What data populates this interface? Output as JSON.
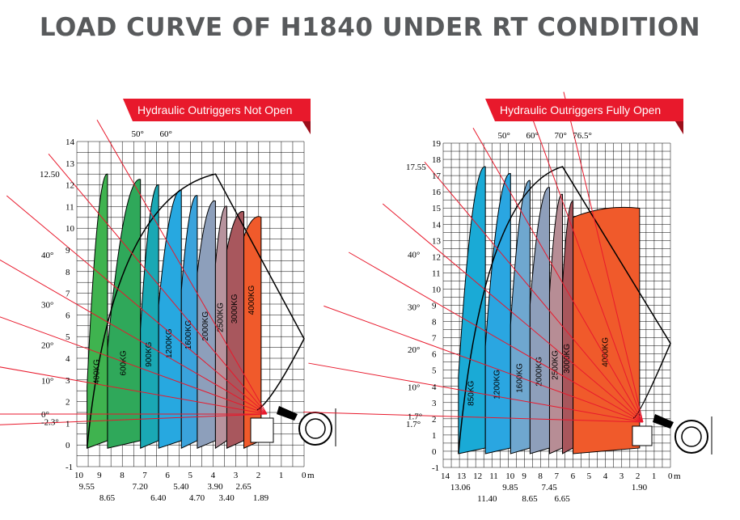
{
  "title": "LOAD CURVE OF H1840 UNDER RT CONDITION",
  "colors": {
    "banner": "#e8192c",
    "grid": "#000000",
    "angle_line": "#e8192c",
    "title": "#585a5c"
  },
  "chart_data": [
    {
      "type": "area",
      "banner": "Hydraulic Outriggers Not Open",
      "x_unit": "m",
      "x_ticks": [
        "10",
        "9",
        "8",
        "7",
        "6",
        "5",
        "4",
        "3",
        "2",
        "1",
        "0"
      ],
      "x_callouts": [
        "9.55",
        "8.65",
        "7.20",
        "6.40",
        "5.40",
        "4.70",
        "3.90",
        "3.40",
        "2.65",
        "1.89"
      ],
      "y_ticks": [
        "-1",
        "0",
        "1",
        "2",
        "3",
        "4",
        "5",
        "6",
        "7",
        "8",
        "9",
        "10",
        "11",
        "12",
        "13",
        "14"
      ],
      "y_callouts": [
        "12.50"
      ],
      "angles": [
        "40°",
        "50°",
        "60°",
        "30°",
        "20°",
        "10°",
        "0°",
        "-2.3°"
      ],
      "zones": [
        {
          "label": "400KG",
          "x_from": 9.55,
          "x_to": 8.65,
          "color": "#3fb34f"
        },
        {
          "label": "600KG",
          "x_from": 8.65,
          "x_to": 7.2,
          "color": "#2fa85a"
        },
        {
          "label": "900KG",
          "x_from": 7.2,
          "x_to": 6.4,
          "color": "#1aa8b4"
        },
        {
          "label": "1200KG",
          "x_from": 6.4,
          "x_to": 5.4,
          "color": "#27a8e0"
        },
        {
          "label": "1600KG",
          "x_from": 5.4,
          "x_to": 4.7,
          "color": "#3aa3dc"
        },
        {
          "label": "2000KG",
          "x_from": 4.7,
          "x_to": 3.9,
          "color": "#8d9fbb"
        },
        {
          "label": "2500KG",
          "x_from": 3.9,
          "x_to": 3.4,
          "color": "#b7939d"
        },
        {
          "label": "3000KG",
          "x_from": 3.4,
          "x_to": 2.65,
          "color": "#a8575d"
        },
        {
          "label": "4000KG",
          "x_from": 2.65,
          "x_to": 1.89,
          "color": "#f05a2b"
        }
      ],
      "max_height": 12.5
    },
    {
      "type": "area",
      "banner": "Hydraulic Outriggers Fully Open",
      "x_unit": "m",
      "x_ticks": [
        "14",
        "13",
        "12",
        "11",
        "10",
        "9",
        "8",
        "7",
        "6",
        "5",
        "4",
        "3",
        "2",
        "1",
        "0"
      ],
      "x_callouts": [
        "13.06",
        "11.40",
        "9.85",
        "8.65",
        "7.45",
        "6.65",
        "1.90"
      ],
      "y_ticks": [
        "-1",
        "0",
        "1",
        "2",
        "3",
        "4",
        "5",
        "6",
        "7",
        "8",
        "9",
        "10",
        "11",
        "12",
        "13",
        "14",
        "15",
        "16",
        "17",
        "18",
        "19"
      ],
      "y_callouts": [
        "17.55",
        "1.7°"
      ],
      "angles": [
        "50°",
        "60°",
        "70°",
        "76.5°",
        "40°",
        "30°",
        "20°",
        "10°",
        "1.7°"
      ],
      "zones": [
        {
          "label": "850KG",
          "x_from": 13.06,
          "x_to": 11.4,
          "color": "#1aaad6"
        },
        {
          "label": "1200KG",
          "x_from": 11.4,
          "x_to": 9.85,
          "color": "#2aa6e1"
        },
        {
          "label": "1600KG",
          "x_from": 9.85,
          "x_to": 8.65,
          "color": "#6fa7cf"
        },
        {
          "label": "2000KG",
          "x_from": 8.65,
          "x_to": 7.45,
          "color": "#8e9fbb"
        },
        {
          "label": "2500KG",
          "x_from": 7.45,
          "x_to": 6.65,
          "color": "#b78d95"
        },
        {
          "label": "3000KG",
          "x_from": 6.65,
          "x_to": 6.0,
          "color": "#a8565c"
        },
        {
          "label": "4000KG",
          "x_from": 6.0,
          "x_to": 1.9,
          "color": "#f05a2b"
        }
      ],
      "max_height": 17.55
    }
  ]
}
